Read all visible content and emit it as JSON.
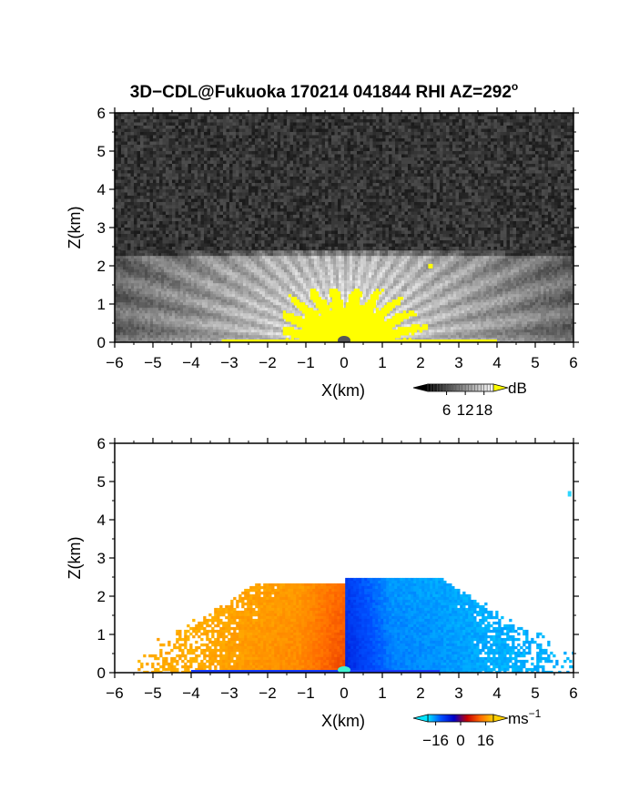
{
  "figure": {
    "title": "3D−CDL@Fukuoka 170214 041844 RHI AZ=292",
    "title_superscript": "o"
  },
  "chart_data": [
    {
      "type": "heatmap",
      "name": "snr-panel",
      "xlabel": "X(km)",
      "ylabel": "Z(km)",
      "xlim": [
        -6,
        6
      ],
      "ylim": [
        0,
        6
      ],
      "xticks": [
        -6,
        -5,
        -4,
        -3,
        -2,
        -1,
        0,
        1,
        2,
        3,
        4,
        5,
        6
      ],
      "yticks": [
        0,
        1,
        2,
        3,
        4,
        5,
        6
      ],
      "tick_labels_x": [
        "−6",
        "−5",
        "−4",
        "−3",
        "−2",
        "−1",
        "0",
        "1",
        "2",
        "3",
        "4",
        "5",
        "6"
      ],
      "tick_labels_y": [
        "0",
        "1",
        "2",
        "3",
        "4",
        "5",
        "6"
      ],
      "colorbar": {
        "unit": "dB",
        "unit_superscript": "",
        "ticks": [
          6,
          12,
          18
        ],
        "tick_labels": [
          "6",
          "12",
          "18"
        ],
        "range": [
          0,
          21
        ],
        "colors": [
          "#000000",
          "#ffffff"
        ],
        "over_color": "#ffff00"
      },
      "colormap": "grayscale",
      "saturated_color": "#ffff00",
      "noise_color": "#2b2b2b",
      "echo_top_km": 2.4,
      "grid": false
    },
    {
      "type": "heatmap",
      "name": "velocity-panel",
      "xlabel": "X(km)",
      "ylabel": "Z(km)",
      "xlim": [
        -6,
        6
      ],
      "ylim": [
        0,
        6
      ],
      "xticks": [
        -6,
        -5,
        -4,
        -3,
        -2,
        -1,
        0,
        1,
        2,
        3,
        4,
        5,
        6
      ],
      "yticks": [
        0,
        1,
        2,
        3,
        4,
        5,
        6
      ],
      "tick_labels_x": [
        "−6",
        "−5",
        "−4",
        "−3",
        "−2",
        "−1",
        "0",
        "1",
        "2",
        "3",
        "4",
        "5",
        "6"
      ],
      "tick_labels_y": [
        "0",
        "1",
        "2",
        "3",
        "4",
        "5",
        "6"
      ],
      "colorbar": {
        "unit": "ms",
        "unit_superscript": "−1",
        "ticks": [
          -16,
          0,
          16
        ],
        "tick_labels": [
          "−16",
          "0",
          "16"
        ],
        "range": [
          -21,
          21
        ],
        "colors": [
          "#00e5ff",
          "#0050ff",
          "#0000c8",
          "#c80000",
          "#ff6a00",
          "#ffd000"
        ]
      },
      "colormap": "doppler",
      "left_side_velocity_ms": 14,
      "right_side_velocity_ms": -14,
      "echo_top_km": 2.5,
      "grid": false
    }
  ]
}
